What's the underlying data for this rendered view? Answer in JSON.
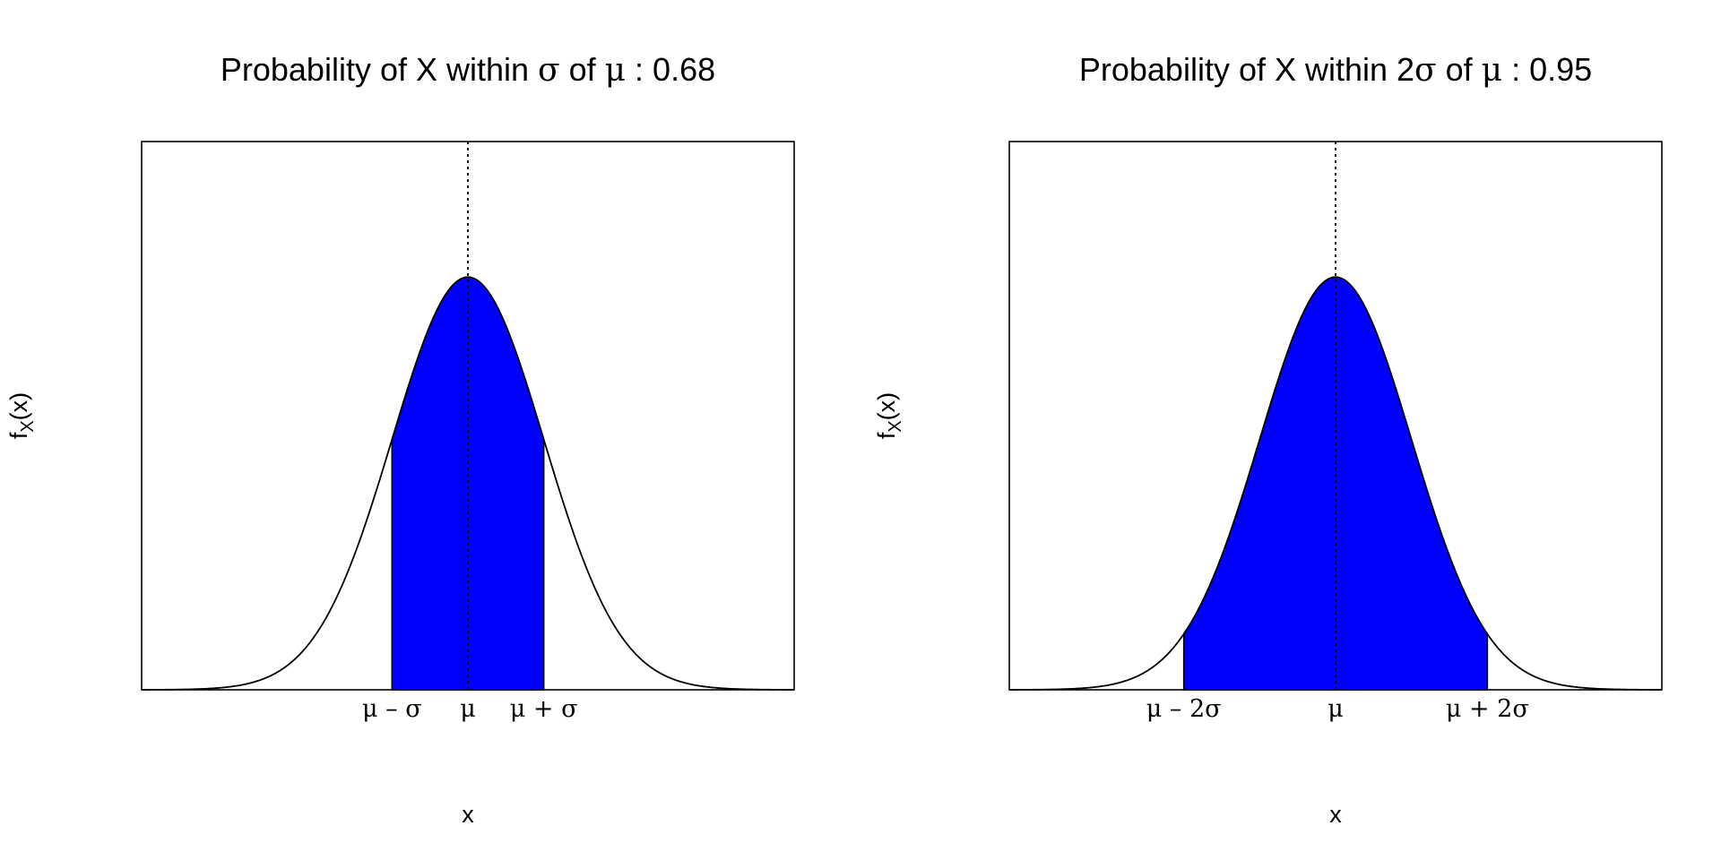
{
  "chart_data": [
    {
      "type": "area",
      "title_parts": [
        "Probability of X within ",
        "σ",
        " of ",
        "μ",
        " : 0.68"
      ],
      "xlabel": "x",
      "ylabel_main": "f",
      "ylabel_sub": "X",
      "ylabel_tail": "(x)",
      "distribution": "normal",
      "mean": 0,
      "sd": 1,
      "xlim": [
        -4.3,
        4.3
      ],
      "ylim": [
        0,
        0.53
      ],
      "shade_from": -1,
      "shade_to": 1,
      "shade_color": "#0000ff",
      "probability": 0.68,
      "ticks": [
        {
          "x": -1,
          "label": "μ – σ"
        },
        {
          "x": 0,
          "label": "μ"
        },
        {
          "x": 1,
          "label": "μ + σ"
        }
      ],
      "mean_line": "dotted"
    },
    {
      "type": "area",
      "title_parts": [
        "Probability of X within 2",
        "σ",
        " of ",
        "μ",
        " : 0.95"
      ],
      "xlabel": "x",
      "ylabel_main": "f",
      "ylabel_sub": "X",
      "ylabel_tail": "(x)",
      "distribution": "normal",
      "mean": 0,
      "sd": 1,
      "xlim": [
        -4.3,
        4.3
      ],
      "ylim": [
        0,
        0.53
      ],
      "shade_from": -2,
      "shade_to": 2,
      "shade_color": "#0000ff",
      "probability": 0.95,
      "ticks": [
        {
          "x": -2,
          "label": "μ – 2σ"
        },
        {
          "x": 0,
          "label": "μ"
        },
        {
          "x": 2,
          "label": "μ + 2σ"
        }
      ],
      "mean_line": "dotted"
    }
  ]
}
